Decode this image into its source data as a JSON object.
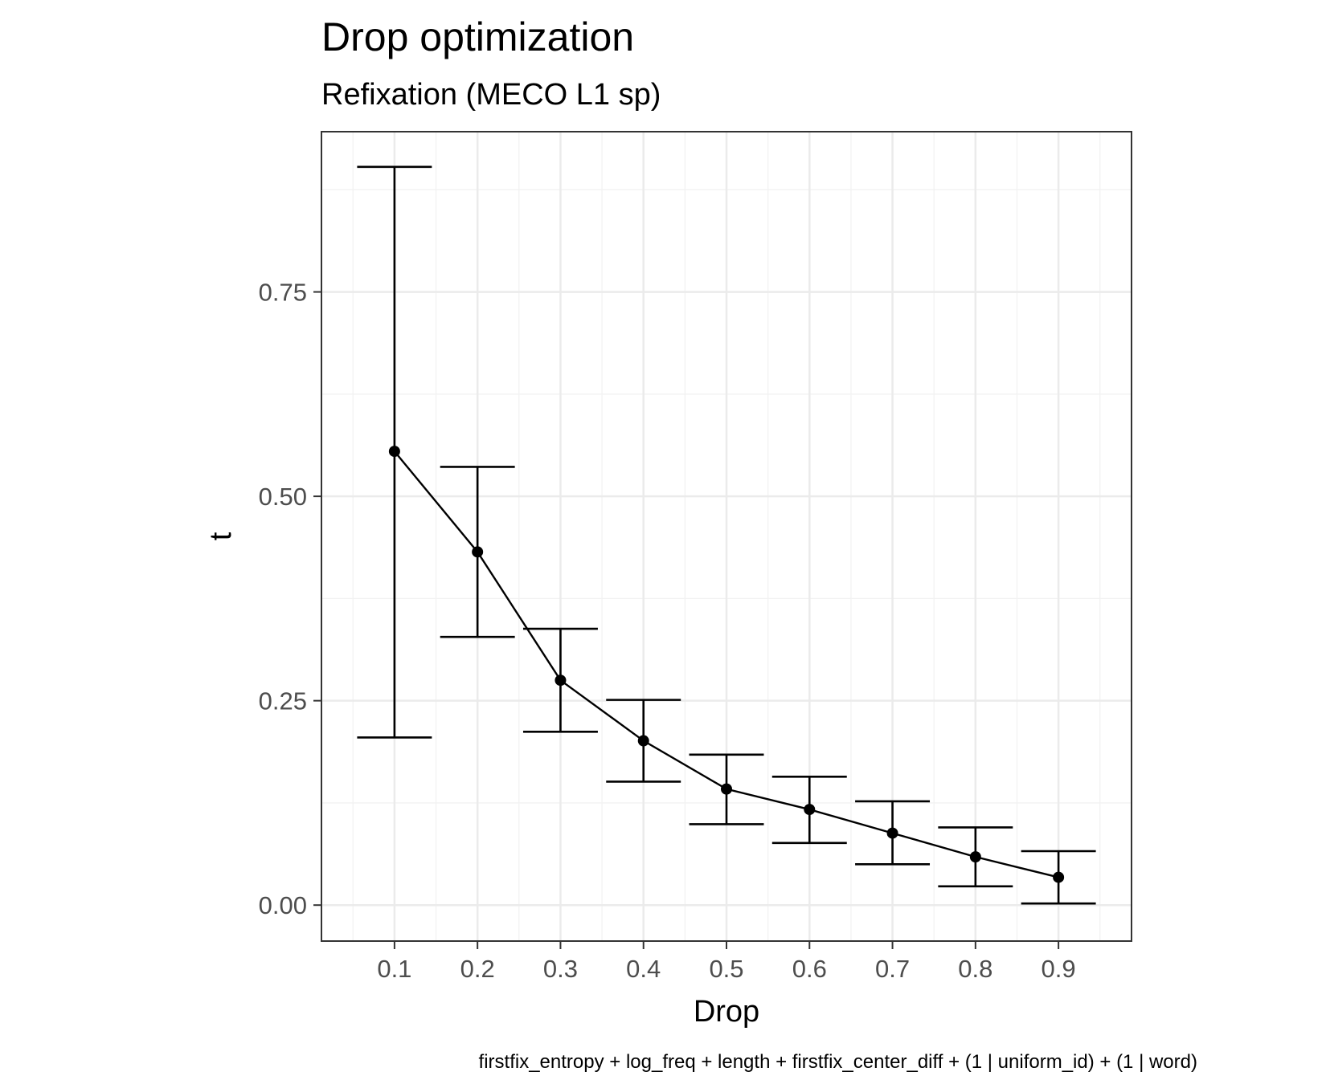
{
  "chart_data": {
    "type": "line",
    "title": "Drop optimization",
    "subtitle": "Refixation (MECO L1 sp)",
    "xlabel": "Drop",
    "ylabel": "t",
    "caption": "firstfix_entropy + log_freq + length + firstfix_center_diff + (1 | uniform_id) + (1 | word)",
    "x": [
      0.1,
      0.2,
      0.3,
      0.4,
      0.5,
      0.6,
      0.7,
      0.8,
      0.9
    ],
    "x_tick_labels": [
      "0.1",
      "0.2",
      "0.3",
      "0.4",
      "0.5",
      "0.6",
      "0.7",
      "0.8",
      "0.9"
    ],
    "y_ticks": [
      0.0,
      0.25,
      0.5,
      0.75
    ],
    "y_tick_labels": [
      "0.00",
      "0.25",
      "0.50",
      "0.75"
    ],
    "xlim": [
      0.012,
      0.988
    ],
    "ylim": [
      -0.044,
      0.946
    ],
    "grid": true,
    "series": [
      {
        "values": [
          0.555,
          0.432,
          0.275,
          0.201,
          0.142,
          0.117,
          0.088,
          0.059,
          0.034
        ],
        "lower": [
          0.205,
          0.328,
          0.212,
          0.151,
          0.099,
          0.076,
          0.05,
          0.023,
          0.002
        ],
        "upper": [
          0.903,
          0.536,
          0.338,
          0.251,
          0.184,
          0.157,
          0.127,
          0.095,
          0.066
        ]
      }
    ]
  }
}
